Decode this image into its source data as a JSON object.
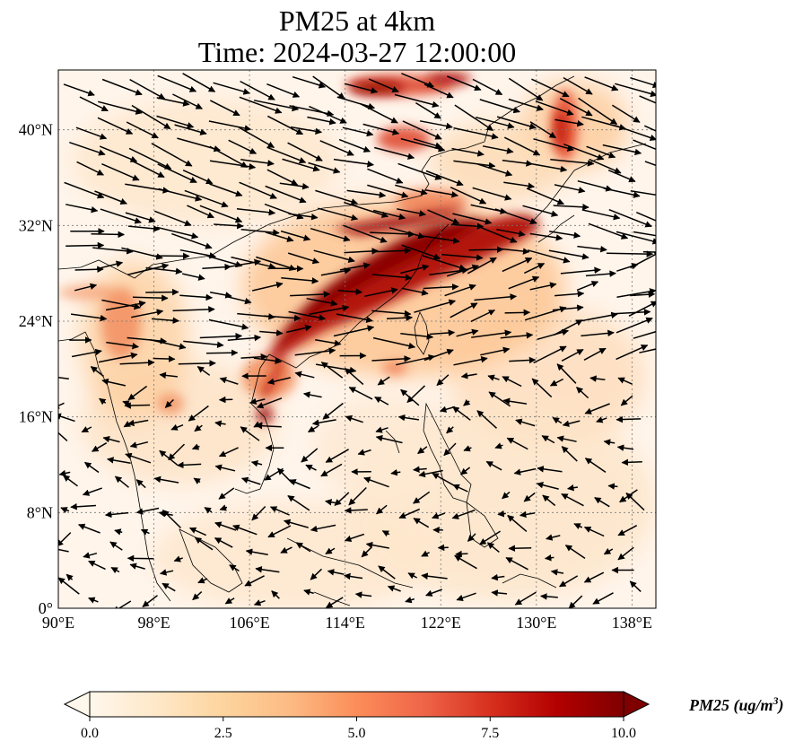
{
  "title": {
    "line1": "PM25 at 4km",
    "line2": "Time: 2024-03-27 12:00:00"
  },
  "map": {
    "extent": {
      "lon": [
        90,
        140
      ],
      "lat": [
        0,
        45
      ]
    },
    "gridlines": true,
    "lon_ticks": [
      {
        "value": 90,
        "label": "90°E"
      },
      {
        "value": 98,
        "label": "98°E"
      },
      {
        "value": 106,
        "label": "106°E"
      },
      {
        "value": 114,
        "label": "114°E"
      },
      {
        "value": 122,
        "label": "122°E"
      },
      {
        "value": 130,
        "label": "130°E"
      },
      {
        "value": 138,
        "label": "138°E"
      }
    ],
    "lat_ticks": [
      {
        "value": 0,
        "label": "0°"
      },
      {
        "value": 8,
        "label": "8°N"
      },
      {
        "value": 16,
        "label": "16°N"
      },
      {
        "value": 24,
        "label": "24°N"
      },
      {
        "value": 32,
        "label": "32°N"
      },
      {
        "value": 40,
        "label": "40°N"
      }
    ],
    "field_colors": [
      "#fff5eb",
      "#fdd49e",
      "#fc8d59",
      "#d7301f",
      "#7f0000"
    ]
  },
  "colorbar": {
    "label": "PM25 (ug/m",
    "label_sup": "3",
    "label_close": ")",
    "vmin": 0,
    "vmax": 10,
    "extend": "both",
    "ticks": [
      "0.0",
      "2.5",
      "5.0",
      "7.5",
      "10.0"
    ],
    "tick_values": [
      0,
      2.5,
      5,
      7.5,
      10
    ],
    "colormap": "OrRd",
    "stops": [
      "#fff7ec",
      "#fee8c8",
      "#fdd49e",
      "#fdbb84",
      "#fc8d59",
      "#ef6548",
      "#d7301f",
      "#b30000",
      "#7f0000"
    ]
  }
}
